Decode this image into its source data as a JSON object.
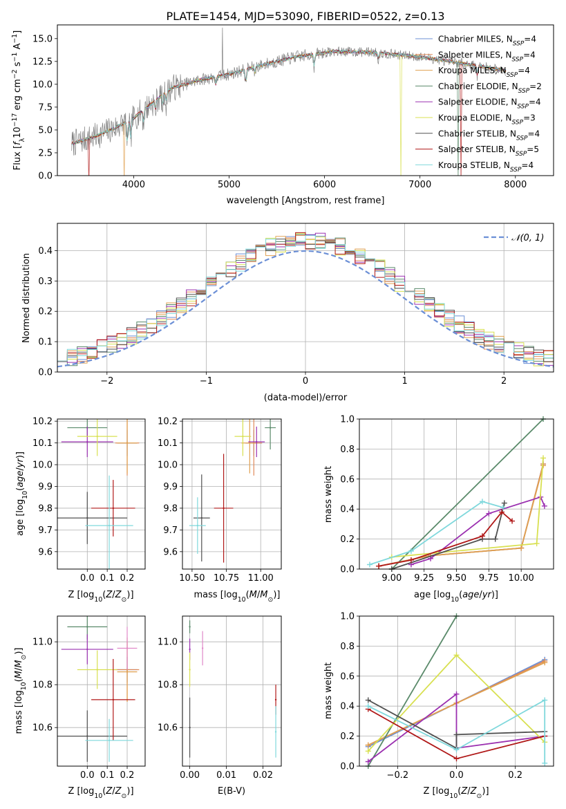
{
  "palette": {
    "Chabrier MILES": "#6b8fd6",
    "Salpeter MILES": "#e08a5a",
    "Kroupa MILES": "#e0a050",
    "Chabrier ELODIE": "#5a8a6a",
    "Salpeter ELODIE": "#9b30b0",
    "Kroupa ELODIE": "#d8e050",
    "Chabrier STELIB": "#505050",
    "Salpeter STELIB": "#b01818",
    "Kroupa STELIB": "#7fd8dc",
    "observed": "#808080",
    "normal": "#6b8fd6",
    "extra_pink": "#e088c8"
  },
  "chart_data": [
    {
      "id": "spectrum",
      "type": "line",
      "title": "PLATE=1454, MJD=53090, FIBERID=0522, z=0.13",
      "xlabel": "wavelength [Angstrom, rest frame]",
      "ylabel": "Flux [f_λ 10^-17 erg cm^-2 s^-1 A^-1]",
      "xlim": [
        3200,
        8400
      ],
      "ylim": [
        0,
        16.5
      ],
      "xticks": [
        "4000",
        "5000",
        "6000",
        "7000",
        "8000"
      ],
      "yticks": [
        "0.0",
        "2.5",
        "5.0",
        "7.5",
        "10.0",
        "12.5",
        "15.0"
      ],
      "legend_position": "right",
      "legend": [
        {
          "name": "Chabrier MILES, N",
          "sub": "SSP",
          "eq": "=4"
        },
        {
          "name": "Salpeter MILES, N",
          "sub": "SSP",
          "eq": "=4"
        },
        {
          "name": "Kroupa MILES, N",
          "sub": "SSP",
          "eq": "=4"
        },
        {
          "name": "Chabrier ELODIE, N",
          "sub": "SSP",
          "eq": "=2"
        },
        {
          "name": "Salpeter ELODIE, N",
          "sub": "SSP",
          "eq": "=4"
        },
        {
          "name": "Kroupa ELODIE, N",
          "sub": "SSP",
          "eq": "=3"
        },
        {
          "name": "Chabrier STELIB, N",
          "sub": "SSP",
          "eq": "=4"
        },
        {
          "name": "Salpeter STELIB, N",
          "sub": "SSP",
          "eq": "=5"
        },
        {
          "name": "Kroupa STELIB, N",
          "sub": "SSP",
          "eq": "=4"
        }
      ],
      "continuum_anchors": [
        [
          3350,
          3.5
        ],
        [
          3600,
          4.3
        ],
        [
          3800,
          5.2
        ],
        [
          4000,
          6.3
        ],
        [
          4200,
          8.0
        ],
        [
          4400,
          9.6
        ],
        [
          4700,
          10.5
        ],
        [
          5000,
          11.1
        ],
        [
          5300,
          12.0
        ],
        [
          5700,
          13.0
        ],
        [
          6100,
          13.6
        ],
        [
          6500,
          13.5
        ],
        [
          7000,
          13.0
        ],
        [
          7500,
          12.2
        ],
        [
          7900,
          11.5
        ]
      ],
      "absorption_lines": [
        [
          3934,
          3.0
        ],
        [
          3969,
          2.5
        ],
        [
          4102,
          1.5
        ],
        [
          4227,
          1.2
        ],
        [
          4305,
          1.5
        ],
        [
          4341,
          1.2
        ],
        [
          4861,
          1.0
        ],
        [
          5175,
          1.8
        ],
        [
          5270,
          0.8
        ],
        [
          5892,
          1.5
        ],
        [
          6563,
          0.8
        ],
        [
          7600,
          1.2
        ]
      ],
      "observed_spike": {
        "x": 4930,
        "y": 16.2
      },
      "model_dropouts": [
        {
          "series": "Salpeter STELIB",
          "x": 3530
        },
        {
          "series": "Salpeter STELIB",
          "x": 7430
        },
        {
          "series": "Kroupa ELODIE",
          "x": 6800
        },
        {
          "series": "Kroupa MILES",
          "x": 3900
        },
        {
          "series": "Chabrier ELODIE",
          "x": 7400
        }
      ]
    },
    {
      "id": "residuals",
      "type": "step",
      "xlabel": "(data-model)/error",
      "ylabel": "Normed distribution",
      "xlim": [
        -2.5,
        2.5
      ],
      "ylim": [
        0,
        0.49
      ],
      "xticks": [
        "−2",
        "−1",
        "0",
        "1",
        "2"
      ],
      "yticks": [
        "0.0",
        "0.1",
        "0.2",
        "0.3",
        "0.4"
      ],
      "legend_position": "top-right",
      "legend": [
        {
          "name": "𝒩(0, 1)"
        }
      ],
      "bins": 50,
      "normal_curve": {
        "mean": 0,
        "sigma": 1
      }
    },
    {
      "id": "z-age",
      "type": "scatter",
      "xlabel": "Z [log10(Z/Z⊙)]",
      "ylabel": "age [log10(age/yr)]",
      "xlim": [
        -0.15,
        0.29
      ],
      "ylim": [
        9.52,
        10.21
      ],
      "xticks": [
        "0.0",
        "0.1",
        "0.2"
      ],
      "yticks": [
        "9.6",
        "9.7",
        "9.8",
        "9.9",
        "10.0",
        "10.1",
        "10.2"
      ],
      "points": [
        {
          "series": "Chabrier MILES",
          "x": 0.2,
          "y": 10.1,
          "xe": 0.05,
          "ye": 0.06
        },
        {
          "series": "Salpeter MILES",
          "x": 0.2,
          "y": 10.1,
          "xe": 0.06,
          "ye": 0.15
        },
        {
          "series": "Kroupa MILES",
          "x": 0.2,
          "y": 10.1,
          "xe": 0.05,
          "ye": 0.14
        },
        {
          "series": "Chabrier ELODIE",
          "x": 0.0,
          "y": 10.17,
          "xe": 0.1,
          "ye": 0.04
        },
        {
          "series": "Salpeter ELODIE",
          "x": 0.0,
          "y": 10.105,
          "xe": 0.13,
          "ye": 0.07
        },
        {
          "series": "Kroupa ELODIE",
          "x": 0.05,
          "y": 10.13,
          "xe": 0.1,
          "ye": 0.09
        },
        {
          "series": "Chabrier STELIB",
          "x": 0.0,
          "y": 9.755,
          "xe": 0.2,
          "ye": 0.12
        },
        {
          "series": "Salpeter STELIB",
          "x": 0.13,
          "y": 9.8,
          "xe": 0.11,
          "ye": 0.13
        },
        {
          "series": "Kroupa STELIB",
          "x": 0.11,
          "y": 9.72,
          "xe": 0.12,
          "ye": 0.23
        }
      ]
    },
    {
      "id": "mass-age",
      "type": "scatter",
      "xlabel": "mass [log10(M/M⊙)]",
      "ylabel": "",
      "xlim": [
        10.43,
        11.15
      ],
      "ylim": [
        9.52,
        10.21
      ],
      "xticks": [
        "10.50",
        "10.75",
        "11.00"
      ],
      "yticks": [
        "9.6",
        "9.7",
        "9.8",
        "9.9",
        "10.0",
        "10.1",
        "10.2"
      ],
      "points": [
        {
          "series": "Chabrier MILES",
          "x": 10.95,
          "y": 10.1,
          "xe": 0.06,
          "ye": 0.06
        },
        {
          "series": "Salpeter MILES",
          "x": 10.95,
          "y": 10.1,
          "xe": 0.06,
          "ye": 0.15
        },
        {
          "series": "Kroupa MILES",
          "x": 10.92,
          "y": 10.1,
          "xe": 0.06,
          "ye": 0.14
        },
        {
          "series": "Chabrier ELODIE",
          "x": 11.07,
          "y": 10.17,
          "xe": 0.04,
          "ye": 0.1
        },
        {
          "series": "Salpeter ELODIE",
          "x": 10.97,
          "y": 10.105,
          "xe": 0.06,
          "ye": 0.07
        },
        {
          "series": "Kroupa ELODIE",
          "x": 10.87,
          "y": 10.13,
          "xe": 0.06,
          "ye": 0.09
        },
        {
          "series": "Chabrier STELIB",
          "x": 10.57,
          "y": 9.755,
          "xe": 0.06,
          "ye": 0.2
        },
        {
          "series": "Salpeter STELIB",
          "x": 10.73,
          "y": 9.8,
          "xe": 0.07,
          "ye": 0.25
        },
        {
          "series": "Kroupa STELIB",
          "x": 10.54,
          "y": 9.72,
          "xe": 0.06,
          "ye": 0.13
        }
      ]
    },
    {
      "id": "age-weight",
      "type": "line",
      "xlabel": "age [log10(age/yr)]",
      "ylabel": "mass weight",
      "xlim": [
        8.75,
        10.25
      ],
      "ylim": [
        0,
        1
      ],
      "xticks": [
        "9.00",
        "9.25",
        "9.50",
        "9.75",
        "10.00"
      ],
      "yticks": [
        "0.0",
        "0.2",
        "0.4",
        "0.6",
        "0.8",
        "1.0"
      ],
      "series": [
        {
          "name": "Chabrier MILES",
          "x": [
            8.9,
            9.3,
            10.0,
            10.17
          ],
          "y": [
            0.02,
            0.09,
            0.14,
            0.7
          ]
        },
        {
          "name": "Salpeter MILES",
          "x": [
            8.9,
            9.3,
            10.0,
            10.17
          ],
          "y": [
            0.02,
            0.09,
            0.14,
            0.7
          ]
        },
        {
          "name": "Kroupa MILES",
          "x": [
            8.9,
            9.3,
            10.0,
            10.17
          ],
          "y": [
            0.02,
            0.09,
            0.14,
            0.69
          ]
        },
        {
          "name": "Chabrier ELODIE",
          "x": [
            9.0,
            10.17
          ],
          "y": [
            0.0,
            1.0
          ]
        },
        {
          "name": "Salpeter ELODIE",
          "x": [
            9.15,
            9.3,
            9.75,
            10.15,
            10.18
          ],
          "y": [
            0.03,
            0.07,
            0.37,
            0.48,
            0.42
          ]
        },
        {
          "name": "Kroupa ELODIE",
          "x": [
            9.0,
            10.12,
            10.17
          ],
          "y": [
            0.08,
            0.17,
            0.74
          ]
        },
        {
          "name": "Chabrier STELIB",
          "x": [
            9.0,
            9.7,
            9.8,
            9.87
          ],
          "y": [
            0.0,
            0.2,
            0.2,
            0.44
          ]
        },
        {
          "name": "Salpeter STELIB",
          "x": [
            8.9,
            9.15,
            9.7,
            9.85,
            9.93
          ],
          "y": [
            0.02,
            0.06,
            0.22,
            0.38,
            0.32
          ]
        },
        {
          "name": "Kroupa STELIB",
          "x": [
            8.83,
            9.15,
            9.7,
            9.86
          ],
          "y": [
            0.03,
            0.12,
            0.45,
            0.41
          ]
        }
      ]
    },
    {
      "id": "z-mass",
      "type": "scatter",
      "xlabel": "Z [log10(Z/Z⊙)]",
      "ylabel": "mass [log10(M/M⊙)]",
      "xlim": [
        -0.15,
        0.29
      ],
      "ylim": [
        10.42,
        11.12
      ],
      "xticks": [
        "0.0",
        "0.1",
        "0.2"
      ],
      "yticks": [
        "10.6",
        "10.8",
        "11.0"
      ],
      "points": [
        {
          "series": "Chabrier MILES",
          "x": 0.2,
          "y": 10.87,
          "xe": 0.05,
          "ye": 0.06
        },
        {
          "series": "Salpeter MILES",
          "x": 0.2,
          "y": 10.87,
          "xe": 0.06,
          "ye": 0.15
        },
        {
          "series": "Kroupa MILES",
          "x": 0.2,
          "y": 10.86,
          "xe": 0.05,
          "ye": 0.14
        },
        {
          "series": "Chabrier ELODIE",
          "x": 0.0,
          "y": 11.07,
          "xe": 0.1,
          "ye": 0.06
        },
        {
          "series": "Salpeter ELODIE",
          "x": 0.0,
          "y": 10.965,
          "xe": 0.13,
          "ye": 0.07
        },
        {
          "series": "Kroupa ELODIE",
          "x": 0.05,
          "y": 10.87,
          "xe": 0.1,
          "ye": 0.09
        },
        {
          "series": "Chabrier STELIB",
          "x": 0.0,
          "y": 10.56,
          "xe": 0.2,
          "ye": 0.12
        },
        {
          "series": "Salpeter STELIB",
          "x": 0.13,
          "y": 10.73,
          "xe": 0.11,
          "ye": 0.19
        },
        {
          "series": "Kroupa STELIB",
          "x": 0.11,
          "y": 10.54,
          "xe": 0.12,
          "ye": 0.1
        },
        {
          "series": "extra_pink",
          "x": 0.2,
          "y": 10.97,
          "xe": 0.05,
          "ye": 0.1
        }
      ]
    },
    {
      "id": "ebv-mass",
      "type": "scatter",
      "xlabel": "E(B-V)",
      "ylabel": "",
      "xlim": [
        -0.002,
        0.025
      ],
      "ylim": [
        10.42,
        11.12
      ],
      "xticks": [
        "0.00",
        "0.01",
        "0.02"
      ],
      "yticks": [
        "10.6",
        "10.8",
        "11.0"
      ],
      "points": [
        {
          "series": "Chabrier ELODIE",
          "x": 0.0,
          "y": 11.07,
          "xe": 0,
          "ye": 0.03
        },
        {
          "series": "Salpeter ELODIE",
          "x": 0.0,
          "y": 10.965,
          "xe": 0,
          "ye": 0.05
        },
        {
          "series": "Kroupa ELODIE",
          "x": 0.0,
          "y": 10.87,
          "xe": 0,
          "ye": 0.08
        },
        {
          "series": "Chabrier STELIB",
          "x": 0.0,
          "y": 10.6,
          "xe": 0,
          "ye": 0.14
        },
        {
          "series": "extra_pink",
          "x": 0.0035,
          "y": 10.97,
          "xe": 0,
          "ye": 0.08
        },
        {
          "series": "Salpeter STELIB",
          "x": 0.0235,
          "y": 10.73,
          "xe": 0,
          "ye": 0.07
        },
        {
          "series": "Kroupa STELIB",
          "x": 0.0235,
          "y": 10.58,
          "xe": 0,
          "ye": 0.12
        }
      ]
    },
    {
      "id": "z-weight",
      "type": "line",
      "xlabel": "Z [log10(Z/Z⊙)]",
      "ylabel": "mass weight",
      "xlim": [
        -0.33,
        0.33
      ],
      "ylim": [
        0,
        1
      ],
      "xticks": [
        "−0.2",
        "0.0",
        "0.2"
      ],
      "yticks": [
        "0.0",
        "0.2",
        "0.4",
        "0.6",
        "0.8",
        "1.0"
      ],
      "series": [
        {
          "name": "Chabrier MILES",
          "x": [
            -0.3,
            0.0,
            0.3
          ],
          "y": [
            0.13,
            0.42,
            0.71
          ]
        },
        {
          "name": "Salpeter MILES",
          "x": [
            -0.3,
            0.0,
            0.3
          ],
          "y": [
            0.14,
            0.42,
            0.7
          ]
        },
        {
          "name": "Kroupa MILES",
          "x": [
            -0.3,
            0.0,
            0.3
          ],
          "y": [
            0.14,
            0.42,
            0.69
          ]
        },
        {
          "name": "Chabrier ELODIE",
          "x": [
            -0.3,
            0.0
          ],
          "y": [
            0.0,
            1.0
          ]
        },
        {
          "name": "Salpeter ELODIE",
          "x": [
            -0.3,
            0.0,
            0.0,
            0.3
          ],
          "y": [
            0.03,
            0.48,
            0.12,
            0.2
          ]
        },
        {
          "name": "Kroupa ELODIE",
          "x": [
            -0.3,
            0.0,
            0.3
          ],
          "y": [
            0.1,
            0.74,
            0.16
          ]
        },
        {
          "name": "Chabrier STELIB",
          "x": [
            -0.3,
            0.0,
            0.0,
            0.3
          ],
          "y": [
            0.44,
            0.12,
            0.21,
            0.23
          ]
        },
        {
          "name": "Salpeter STELIB",
          "x": [
            -0.3,
            0.0,
            0.3
          ],
          "y": [
            0.38,
            0.05,
            0.2
          ]
        },
        {
          "name": "Kroupa STELIB",
          "x": [
            -0.3,
            0.0,
            0.3,
            0.3
          ],
          "y": [
            0.4,
            0.11,
            0.44,
            0.02
          ]
        }
      ]
    }
  ]
}
